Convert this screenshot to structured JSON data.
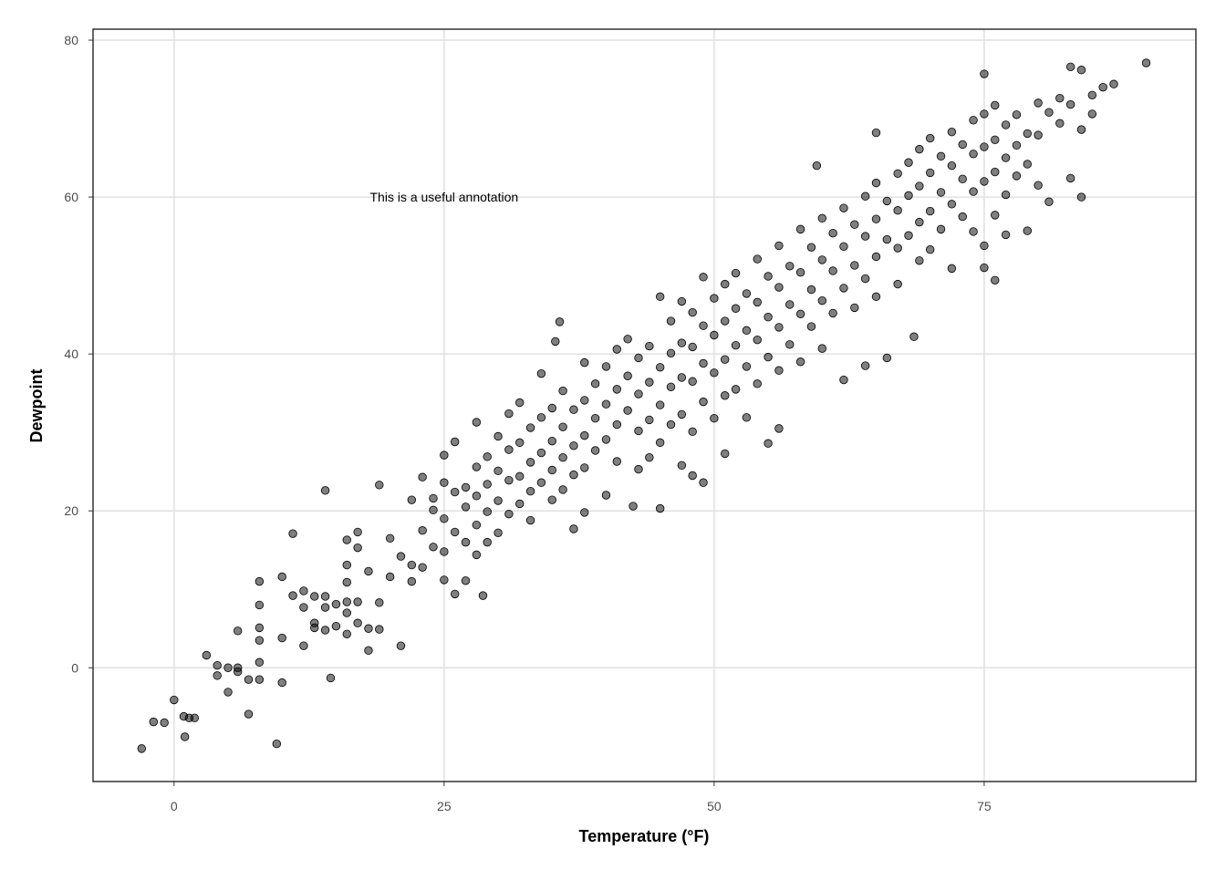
{
  "chart_data": {
    "type": "scatter",
    "title": "",
    "xlabel": "Temperature (°F)",
    "ylabel": "Dewpoint",
    "xlim": [
      -7.5,
      94.6
    ],
    "ylim": [
      -14.5,
      81.4
    ],
    "xticks": [
      0,
      25,
      50,
      75
    ],
    "yticks": [
      0,
      20,
      40,
      60,
      80
    ],
    "grid": true,
    "legend": "none",
    "point_fill": "#000000",
    "point_alpha": 0.5,
    "annotation": {
      "text": "This is a useful annotation",
      "x": 25,
      "y": 60
    },
    "points": [
      [
        -3,
        -10.3
      ],
      [
        -1.9,
        -6.9
      ],
      [
        -0.9,
        -7.0
      ],
      [
        0,
        -4.1
      ],
      [
        0.9,
        -6.2
      ],
      [
        1,
        -8.8
      ],
      [
        1.4,
        -6.4
      ],
      [
        1.9,
        -6.4
      ],
      [
        3,
        1.6
      ],
      [
        4,
        0.3
      ],
      [
        4,
        -1.0
      ],
      [
        5,
        0
      ],
      [
        5,
        -3.1
      ],
      [
        5.9,
        4.7
      ],
      [
        5.9,
        0
      ],
      [
        5.9,
        -0.5
      ],
      [
        6.9,
        -1.5
      ],
      [
        6.9,
        -5.9
      ],
      [
        7.9,
        11.0
      ],
      [
        7.9,
        8.0
      ],
      [
        7.9,
        5.1
      ],
      [
        7.9,
        3.5
      ],
      [
        7.9,
        0.7
      ],
      [
        7.9,
        -1.5
      ],
      [
        9.5,
        -9.7
      ],
      [
        10,
        11.6
      ],
      [
        10,
        3.8
      ],
      [
        10,
        -1.9
      ],
      [
        11,
        17.1
      ],
      [
        11,
        9.2
      ],
      [
        12,
        9.8
      ],
      [
        12,
        7.7
      ],
      [
        12,
        2.8
      ],
      [
        13,
        9.1
      ],
      [
        13,
        5.7
      ],
      [
        13,
        5.1
      ],
      [
        14,
        22.6
      ],
      [
        14,
        9.1
      ],
      [
        14,
        7.7
      ],
      [
        14,
        4.8
      ],
      [
        14.5,
        -1.3
      ],
      [
        15,
        8.1
      ],
      [
        15,
        5.3
      ],
      [
        16,
        16.3
      ],
      [
        16,
        13.1
      ],
      [
        16,
        10.9
      ],
      [
        16,
        8.4
      ],
      [
        16,
        7.0
      ],
      [
        16,
        4.3
      ],
      [
        17,
        17.3
      ],
      [
        17,
        15.3
      ],
      [
        17,
        8.4
      ],
      [
        17,
        5.7
      ],
      [
        18,
        12.3
      ],
      [
        18,
        5.0
      ],
      [
        18,
        2.2
      ],
      [
        19,
        23.3
      ],
      [
        19,
        8.3
      ],
      [
        19,
        4.9
      ],
      [
        20,
        16.5
      ],
      [
        20,
        11.6
      ],
      [
        21,
        2.8
      ],
      [
        21,
        14.2
      ],
      [
        22,
        21.4
      ],
      [
        22,
        13.1
      ],
      [
        22,
        11.0
      ],
      [
        23,
        24.3
      ],
      [
        23,
        17.5
      ],
      [
        23,
        12.8
      ],
      [
        24,
        20.1
      ],
      [
        24,
        15.4
      ],
      [
        24,
        21.6
      ],
      [
        25,
        27.1
      ],
      [
        25,
        23.6
      ],
      [
        25,
        19.0
      ],
      [
        25,
        14.8
      ],
      [
        25,
        11.2
      ],
      [
        26,
        28.8
      ],
      [
        26,
        22.4
      ],
      [
        26,
        17.3
      ],
      [
        26,
        9.4
      ],
      [
        27,
        23.0
      ],
      [
        27,
        20.5
      ],
      [
        27,
        16.0
      ],
      [
        27,
        11.1
      ],
      [
        28,
        31.3
      ],
      [
        28,
        25.6
      ],
      [
        28,
        21.9
      ],
      [
        28,
        18.2
      ],
      [
        28,
        14.4
      ],
      [
        28.6,
        9.2
      ],
      [
        29,
        26.9
      ],
      [
        29,
        23.4
      ],
      [
        29,
        19.9
      ],
      [
        29,
        16.0
      ],
      [
        30,
        29.5
      ],
      [
        30,
        25.1
      ],
      [
        30,
        21.3
      ],
      [
        30,
        17.2
      ],
      [
        31,
        32.4
      ],
      [
        31,
        27.8
      ],
      [
        31,
        23.9
      ],
      [
        31,
        19.6
      ],
      [
        32,
        33.8
      ],
      [
        32,
        28.7
      ],
      [
        32,
        24.4
      ],
      [
        32,
        20.9
      ],
      [
        33,
        30.6
      ],
      [
        33,
        26.2
      ],
      [
        33,
        22.5
      ],
      [
        33,
        18.8
      ],
      [
        34,
        37.5
      ],
      [
        34,
        31.9
      ],
      [
        34,
        27.4
      ],
      [
        34,
        23.6
      ],
      [
        35,
        33.1
      ],
      [
        35,
        28.9
      ],
      [
        35,
        25.2
      ],
      [
        35,
        21.4
      ],
      [
        35.3,
        41.6
      ],
      [
        35.7,
        44.1
      ],
      [
        36,
        35.3
      ],
      [
        36,
        30.7
      ],
      [
        36,
        26.8
      ],
      [
        36,
        22.7
      ],
      [
        37,
        32.9
      ],
      [
        37,
        28.3
      ],
      [
        37,
        24.6
      ],
      [
        37,
        17.7
      ],
      [
        38,
        38.9
      ],
      [
        38,
        34.1
      ],
      [
        38,
        29.6
      ],
      [
        38,
        25.5
      ],
      [
        38,
        19.8
      ],
      [
        39,
        36.2
      ],
      [
        39,
        31.8
      ],
      [
        39,
        27.7
      ],
      [
        40,
        38.4
      ],
      [
        40,
        33.6
      ],
      [
        40,
        29.1
      ],
      [
        40,
        22.0
      ],
      [
        41,
        40.6
      ],
      [
        41,
        35.5
      ],
      [
        41,
        31.0
      ],
      [
        41,
        26.3
      ],
      [
        42,
        41.9
      ],
      [
        42,
        37.2
      ],
      [
        42,
        32.8
      ],
      [
        42.5,
        20.6
      ],
      [
        43,
        39.5
      ],
      [
        43,
        34.9
      ],
      [
        43,
        30.2
      ],
      [
        43,
        25.3
      ],
      [
        44,
        41.0
      ],
      [
        44,
        36.4
      ],
      [
        44,
        31.6
      ],
      [
        44,
        26.8
      ],
      [
        45,
        47.3
      ],
      [
        45,
        38.3
      ],
      [
        45,
        33.5
      ],
      [
        45,
        28.7
      ],
      [
        45,
        20.3
      ],
      [
        46,
        44.2
      ],
      [
        46,
        40.1
      ],
      [
        46,
        35.8
      ],
      [
        46,
        31.0
      ],
      [
        47,
        46.7
      ],
      [
        47,
        41.4
      ],
      [
        47,
        37.0
      ],
      [
        47,
        32.3
      ],
      [
        47,
        25.8
      ],
      [
        48,
        45.3
      ],
      [
        48,
        40.9
      ],
      [
        48,
        36.5
      ],
      [
        48,
        30.1
      ],
      [
        48,
        24.5
      ],
      [
        49,
        49.8
      ],
      [
        49,
        43.6
      ],
      [
        49,
        38.8
      ],
      [
        49,
        33.9
      ],
      [
        49,
        23.6
      ],
      [
        50,
        47.1
      ],
      [
        50,
        42.4
      ],
      [
        50,
        37.6
      ],
      [
        50,
        31.8
      ],
      [
        51,
        48.9
      ],
      [
        51,
        44.2
      ],
      [
        51,
        39.3
      ],
      [
        51,
        34.7
      ],
      [
        51,
        27.3
      ],
      [
        52,
        50.3
      ],
      [
        52,
        45.8
      ],
      [
        52,
        41.1
      ],
      [
        52,
        35.5
      ],
      [
        53,
        47.7
      ],
      [
        53,
        43.0
      ],
      [
        53,
        38.4
      ],
      [
        53,
        31.9
      ],
      [
        54,
        52.1
      ],
      [
        54,
        46.6
      ],
      [
        54,
        41.8
      ],
      [
        54,
        36.2
      ],
      [
        55,
        49.9
      ],
      [
        55,
        44.7
      ],
      [
        55,
        39.6
      ],
      [
        55,
        28.6
      ],
      [
        56,
        53.8
      ],
      [
        56,
        48.5
      ],
      [
        56,
        43.4
      ],
      [
        56,
        37.9
      ],
      [
        56,
        30.5
      ],
      [
        57,
        51.2
      ],
      [
        57,
        46.3
      ],
      [
        57,
        41.2
      ],
      [
        58,
        55.9
      ],
      [
        58,
        50.4
      ],
      [
        58,
        45.1
      ],
      [
        58,
        39.0
      ],
      [
        59,
        53.6
      ],
      [
        59,
        48.2
      ],
      [
        59,
        43.5
      ],
      [
        59.5,
        64.0
      ],
      [
        60,
        57.3
      ],
      [
        60,
        52.0
      ],
      [
        60,
        46.8
      ],
      [
        60,
        40.7
      ],
      [
        61,
        55.4
      ],
      [
        61,
        50.6
      ],
      [
        61,
        45.2
      ],
      [
        62,
        58.6
      ],
      [
        62,
        53.7
      ],
      [
        62,
        48.4
      ],
      [
        62,
        36.7
      ],
      [
        63,
        56.5
      ],
      [
        63,
        51.3
      ],
      [
        63,
        45.9
      ],
      [
        64,
        60.1
      ],
      [
        64,
        55.0
      ],
      [
        64,
        49.6
      ],
      [
        64,
        38.5
      ],
      [
        65,
        61.8
      ],
      [
        65,
        57.2
      ],
      [
        65,
        52.4
      ],
      [
        65,
        68.2
      ],
      [
        65,
        47.3
      ],
      [
        66,
        59.5
      ],
      [
        66,
        54.6
      ],
      [
        66,
        39.5
      ],
      [
        67,
        63.0
      ],
      [
        67,
        58.3
      ],
      [
        67,
        53.5
      ],
      [
        67,
        48.9
      ],
      [
        68,
        64.4
      ],
      [
        68,
        60.2
      ],
      [
        68,
        55.1
      ],
      [
        68.5,
        42.2
      ],
      [
        69,
        66.1
      ],
      [
        69,
        61.4
      ],
      [
        69,
        56.8
      ],
      [
        69,
        51.9
      ],
      [
        70,
        67.5
      ],
      [
        70,
        63.1
      ],
      [
        70,
        58.2
      ],
      [
        70,
        53.3
      ],
      [
        71,
        65.2
      ],
      [
        71,
        60.6
      ],
      [
        71,
        55.9
      ],
      [
        72,
        68.3
      ],
      [
        72,
        64.0
      ],
      [
        72,
        59.1
      ],
      [
        72,
        50.9
      ],
      [
        73,
        66.7
      ],
      [
        73,
        62.3
      ],
      [
        73,
        57.5
      ],
      [
        74,
        69.8
      ],
      [
        74,
        65.5
      ],
      [
        74,
        60.7
      ],
      [
        74,
        55.6
      ],
      [
        75,
        70.6
      ],
      [
        75,
        66.4
      ],
      [
        75,
        62.0
      ],
      [
        75,
        53.8
      ],
      [
        75,
        51.0
      ],
      [
        75,
        75.7
      ],
      [
        76,
        71.7
      ],
      [
        76,
        67.3
      ],
      [
        76,
        63.2
      ],
      [
        76,
        57.7
      ],
      [
        76,
        49.4
      ],
      [
        77,
        69.2
      ],
      [
        77,
        65.0
      ],
      [
        77,
        60.3
      ],
      [
        77,
        55.2
      ],
      [
        78,
        70.5
      ],
      [
        78,
        66.6
      ],
      [
        78,
        62.7
      ],
      [
        79,
        68.1
      ],
      [
        79,
        64.2
      ],
      [
        79,
        55.7
      ],
      [
        80,
        72.0
      ],
      [
        80,
        67.9
      ],
      [
        80,
        61.5
      ],
      [
        81,
        70.8
      ],
      [
        81,
        59.4
      ],
      [
        82,
        72.6
      ],
      [
        82,
        69.4
      ],
      [
        83,
        76.6
      ],
      [
        83,
        71.8
      ],
      [
        83,
        62.4
      ],
      [
        84,
        76.2
      ],
      [
        84,
        68.6
      ],
      [
        84,
        60.0
      ],
      [
        85,
        73.0
      ],
      [
        85,
        70.6
      ],
      [
        86,
        74.0
      ],
      [
        87,
        74.4
      ],
      [
        90,
        77.1
      ]
    ]
  }
}
